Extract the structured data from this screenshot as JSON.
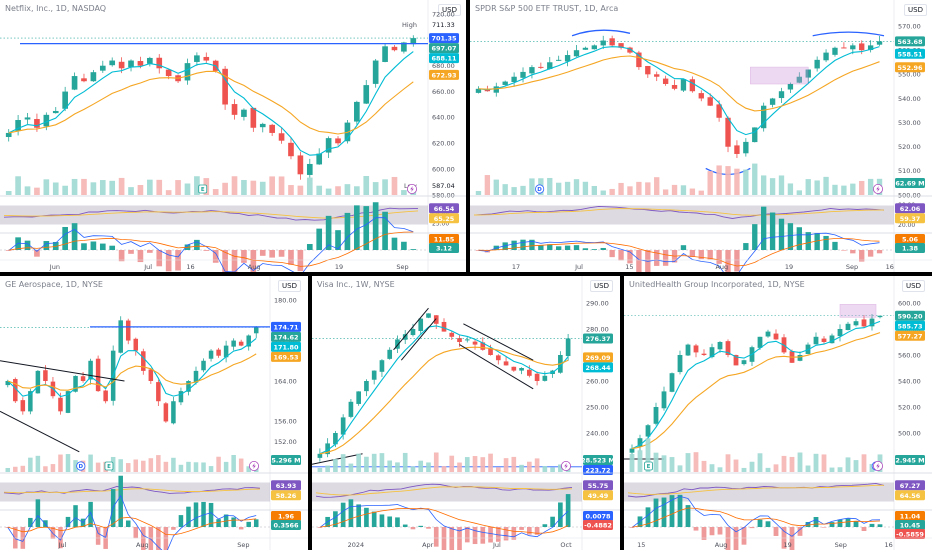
{
  "panels": [
    {
      "id": "nflx",
      "title": "Netflix, Inc., 1D, NASDAQ",
      "currency": "USD",
      "price_ticks": [
        "720.00",
        "700.00",
        "680.00",
        "660.00",
        "640.00",
        "620.00",
        "600.00",
        "580.00"
      ],
      "time_labels": [
        "Jun",
        "Jul",
        "16",
        "Aug",
        "19",
        "Sep"
      ],
      "high_label": "High",
      "high_value": "711.33",
      "low_label": "Low",
      "low_value": "587.04",
      "price_tags": [
        {
          "text": "701.35",
          "color": "#2962ff"
        },
        {
          "text": "697.07",
          "color": "#26a69a"
        },
        {
          "text": "688.11",
          "color": "#00bcd4"
        },
        {
          "text": "672.93",
          "color": "#f5a623"
        }
      ],
      "volume_tag": null,
      "rsi_ticks": [
        "75.00",
        "50.00",
        "25.00"
      ],
      "rsi_tags": [
        {
          "text": "66.54",
          "color": "#7e57c2"
        },
        {
          "text": "65.25",
          "color": "#f5c242"
        }
      ],
      "macd_tags": [
        {
          "text": "11.85",
          "color": "#f57c00"
        },
        {
          "text": "3.12",
          "color": "#26a69a"
        }
      ],
      "events": [
        "E"
      ]
    },
    {
      "id": "spy",
      "title": "SPDR S&P 500 ETF TRUST, 1D, Arca",
      "currency": "USD",
      "price_ticks": [
        "570.00",
        "560.00",
        "550.00",
        "540.00",
        "530.00",
        "520.00",
        "510.00",
        "500.00"
      ],
      "time_labels": [
        "17",
        "Jul",
        "15",
        "Aug",
        "19",
        "Sep",
        "16"
      ],
      "price_tags": [
        {
          "text": "563.68",
          "color": "#26a69a"
        },
        {
          "text": "558.51",
          "color": "#00bcd4"
        },
        {
          "text": "552.96",
          "color": "#f5a623"
        }
      ],
      "volume_tag": {
        "text": "62.69 M",
        "color": "#26a69a"
      },
      "rsi_ticks": [
        "80.00",
        "20.00"
      ],
      "rsi_tags": [
        {
          "text": "62.06",
          "color": "#7e57c2"
        },
        {
          "text": "59.37",
          "color": "#f5c242"
        }
      ],
      "macd_tags": [
        {
          "text": "5.06",
          "color": "#f57c00"
        },
        {
          "text": "1.38",
          "color": "#26a69a"
        }
      ],
      "events": [
        "D"
      ]
    },
    {
      "id": "ge",
      "title": "GE Aerospace, 1D, NYSE",
      "currency": "USD",
      "price_ticks": [
        "180.00",
        "172.00",
        "164.00",
        "156.00",
        "152.00",
        "148.00"
      ],
      "time_labels": [
        "Jul",
        "Aug",
        "Sep"
      ],
      "price_tags": [
        {
          "text": "174.71",
          "color": "#2962ff"
        },
        {
          "text": "174.62",
          "color": "#26a69a"
        },
        {
          "text": "171.80",
          "color": "#00bcd4"
        },
        {
          "text": "169.53",
          "color": "#f5a623"
        }
      ],
      "volume_tag": {
        "text": "5.296 M",
        "color": "#26a69a"
      },
      "rsi_ticks": [],
      "rsi_tags": [
        {
          "text": "63.93",
          "color": "#7e57c2"
        },
        {
          "text": "58.26",
          "color": "#f5c242"
        }
      ],
      "macd_tags": [
        {
          "text": "1.96",
          "color": "#f57c00"
        },
        {
          "text": "0.3566",
          "color": "#26a69a"
        }
      ],
      "events": [
        "D",
        "E"
      ]
    },
    {
      "id": "v",
      "title": "Visa Inc., 1W, NYSE",
      "currency": "USD",
      "price_ticks": [
        "290.00",
        "280.00",
        "270.00",
        "260.00",
        "250.00",
        "240.00",
        "230.00"
      ],
      "time_labels": [
        "2024",
        "Apr",
        "Jul",
        "Oct"
      ],
      "price_tags": [
        {
          "text": "276.37",
          "color": "#26a69a"
        },
        {
          "text": "269.09",
          "color": "#f5a623"
        },
        {
          "text": "268.44",
          "color": "#00bcd4"
        }
      ],
      "volume_tag": {
        "text": "28.523 M",
        "color": "#26a69a"
      },
      "volume_tag2": {
        "text": "223.72",
        "color": "#2962ff"
      },
      "rsi_ticks": [],
      "rsi_tags": [
        {
          "text": "55.75",
          "color": "#7e57c2"
        },
        {
          "text": "49.49",
          "color": "#f5c242"
        }
      ],
      "macd_tags": [
        {
          "text": "0.0078",
          "color": "#2962ff"
        },
        {
          "text": "-0.4882",
          "color": "#ef5350"
        }
      ],
      "events": []
    },
    {
      "id": "unh",
      "title": "UnitedHealth Group Incorporated, 1D, NYSE",
      "currency": "USD",
      "price_ticks": [
        "600.00",
        "580.00",
        "560.00",
        "540.00",
        "520.00",
        "500.00",
        "480.00"
      ],
      "time_labels": [
        "15",
        "Aug",
        "19",
        "Sep",
        "16"
      ],
      "price_tags": [
        {
          "text": "590.20",
          "color": "#26a69a"
        },
        {
          "text": "585.73",
          "color": "#00bcd4"
        },
        {
          "text": "577.27",
          "color": "#f5a623"
        }
      ],
      "volume_tag": {
        "text": "2.945 M",
        "color": "#26a69a"
      },
      "rsi_ticks": [],
      "rsi_tags": [
        {
          "text": "67.27",
          "color": "#7e57c2"
        },
        {
          "text": "64.56",
          "color": "#f5c242"
        }
      ],
      "macd_tags": [
        {
          "text": "11.04",
          "color": "#f57c00"
        },
        {
          "text": "10.45",
          "color": "#26a69a"
        },
        {
          "text": "-0.5859",
          "color": "#ef5350"
        }
      ],
      "events": [
        "E",
        "D"
      ]
    }
  ],
  "chart_data": [
    {
      "type": "candlestick",
      "symbol": "NFLX",
      "title": "Netflix, Inc., 1D, NASDAQ",
      "timeframe": "1D",
      "ylim": [
        580,
        720
      ],
      "high": 711.33,
      "low": 587.04,
      "close_path": [
        628,
        638,
        640,
        632,
        642,
        645,
        660,
        672,
        668,
        675,
        680,
        684,
        678,
        684,
        680,
        686,
        678,
        672,
        668,
        682,
        688,
        684,
        676,
        650,
        642,
        646,
        632,
        635,
        628,
        622,
        610,
        596,
        604,
        612,
        624,
        620,
        636,
        652,
        665,
        684,
        695,
        692,
        698,
        701.35
      ],
      "last_price": 701.35,
      "ema_fast": 688.11,
      "ema_slow": 672.93,
      "resistance": 697.07,
      "rsi": 66.54,
      "rsi_ma": 65.25,
      "macd": 11.85,
      "signal": 3.12
    },
    {
      "type": "candlestick",
      "symbol": "SPY",
      "title": "SPDR S&P 500 ETF TRUST, 1D, Arca",
      "timeframe": "1D",
      "ylim": [
        500,
        575
      ],
      "close_path": [
        544,
        543,
        545,
        547,
        549,
        551,
        553,
        553,
        555,
        556,
        558,
        560,
        561,
        562,
        564,
        562,
        561,
        559,
        553,
        550,
        549,
        546,
        544,
        548,
        543,
        540,
        537,
        532,
        520,
        517,
        522,
        528,
        537,
        540,
        543,
        546,
        549,
        552,
        556,
        559,
        561,
        561,
        562,
        560,
        562,
        563.68
      ],
      "last_price": 563.68,
      "ema_fast": 558.51,
      "ema_slow": 552.96,
      "volume": "62.69 M",
      "rsi": 62.06,
      "rsi_ma": 59.37,
      "macd": 5.06,
      "signal": 1.38
    },
    {
      "type": "candlestick",
      "symbol": "GE",
      "title": "GE Aerospace, 1D, NYSE",
      "timeframe": "1D",
      "ylim": [
        146,
        182
      ],
      "close_path": [
        164,
        160,
        158,
        162,
        166,
        164,
        161,
        158,
        162,
        165,
        164,
        168,
        162,
        160,
        170,
        176,
        172,
        170,
        166,
        164,
        160,
        156,
        160,
        162,
        164,
        166,
        168,
        170,
        169,
        171,
        172,
        171,
        173,
        174.62
      ],
      "last_price": 174.62,
      "resistance": 174.71,
      "ema_fast": 171.8,
      "ema_slow": 169.53,
      "volume": "5.296 M",
      "rsi": 63.93,
      "rsi_ma": 58.26,
      "macd": 1.96,
      "signal": 0.3566
    },
    {
      "type": "candlestick",
      "symbol": "V",
      "title": "Visa Inc., 1W, NYSE",
      "timeframe": "1W",
      "ylim": [
        225,
        295
      ],
      "close_path": [
        232,
        236,
        240,
        246,
        252,
        256,
        260,
        264,
        268,
        272,
        276,
        278,
        280,
        284,
        286,
        282,
        279,
        277,
        275,
        276,
        274,
        272,
        270,
        268,
        266,
        264,
        265,
        262,
        260,
        262,
        264,
        270,
        276.37
      ],
      "last_price": 276.37,
      "ema_fast": 268.44,
      "ema_slow": 269.09,
      "volume": "28.523 M",
      "volume_ma": 223.72,
      "rsi": 55.75,
      "rsi_ma": 49.49,
      "macd": 0.0078,
      "signal": -0.4882
    },
    {
      "type": "candlestick",
      "symbol": "UNH",
      "title": "UnitedHealth Group Incorporated, 1D, NYSE",
      "timeframe": "1D",
      "ylim": [
        470,
        610
      ],
      "close_path": [
        488,
        496,
        506,
        520,
        532,
        546,
        560,
        568,
        562,
        560,
        566,
        570,
        560,
        552,
        556,
        566,
        574,
        578,
        572,
        562,
        554,
        560,
        568,
        574,
        570,
        575,
        580,
        584,
        586,
        582,
        588,
        590.2
      ],
      "last_price": 590.2,
      "ema_fast": 585.73,
      "ema_slow": 577.27,
      "volume": "2.945 M",
      "rsi": 67.27,
      "rsi_ma": 64.56,
      "macd": 11.04,
      "signal": 10.45,
      "hist": -0.5859
    }
  ]
}
